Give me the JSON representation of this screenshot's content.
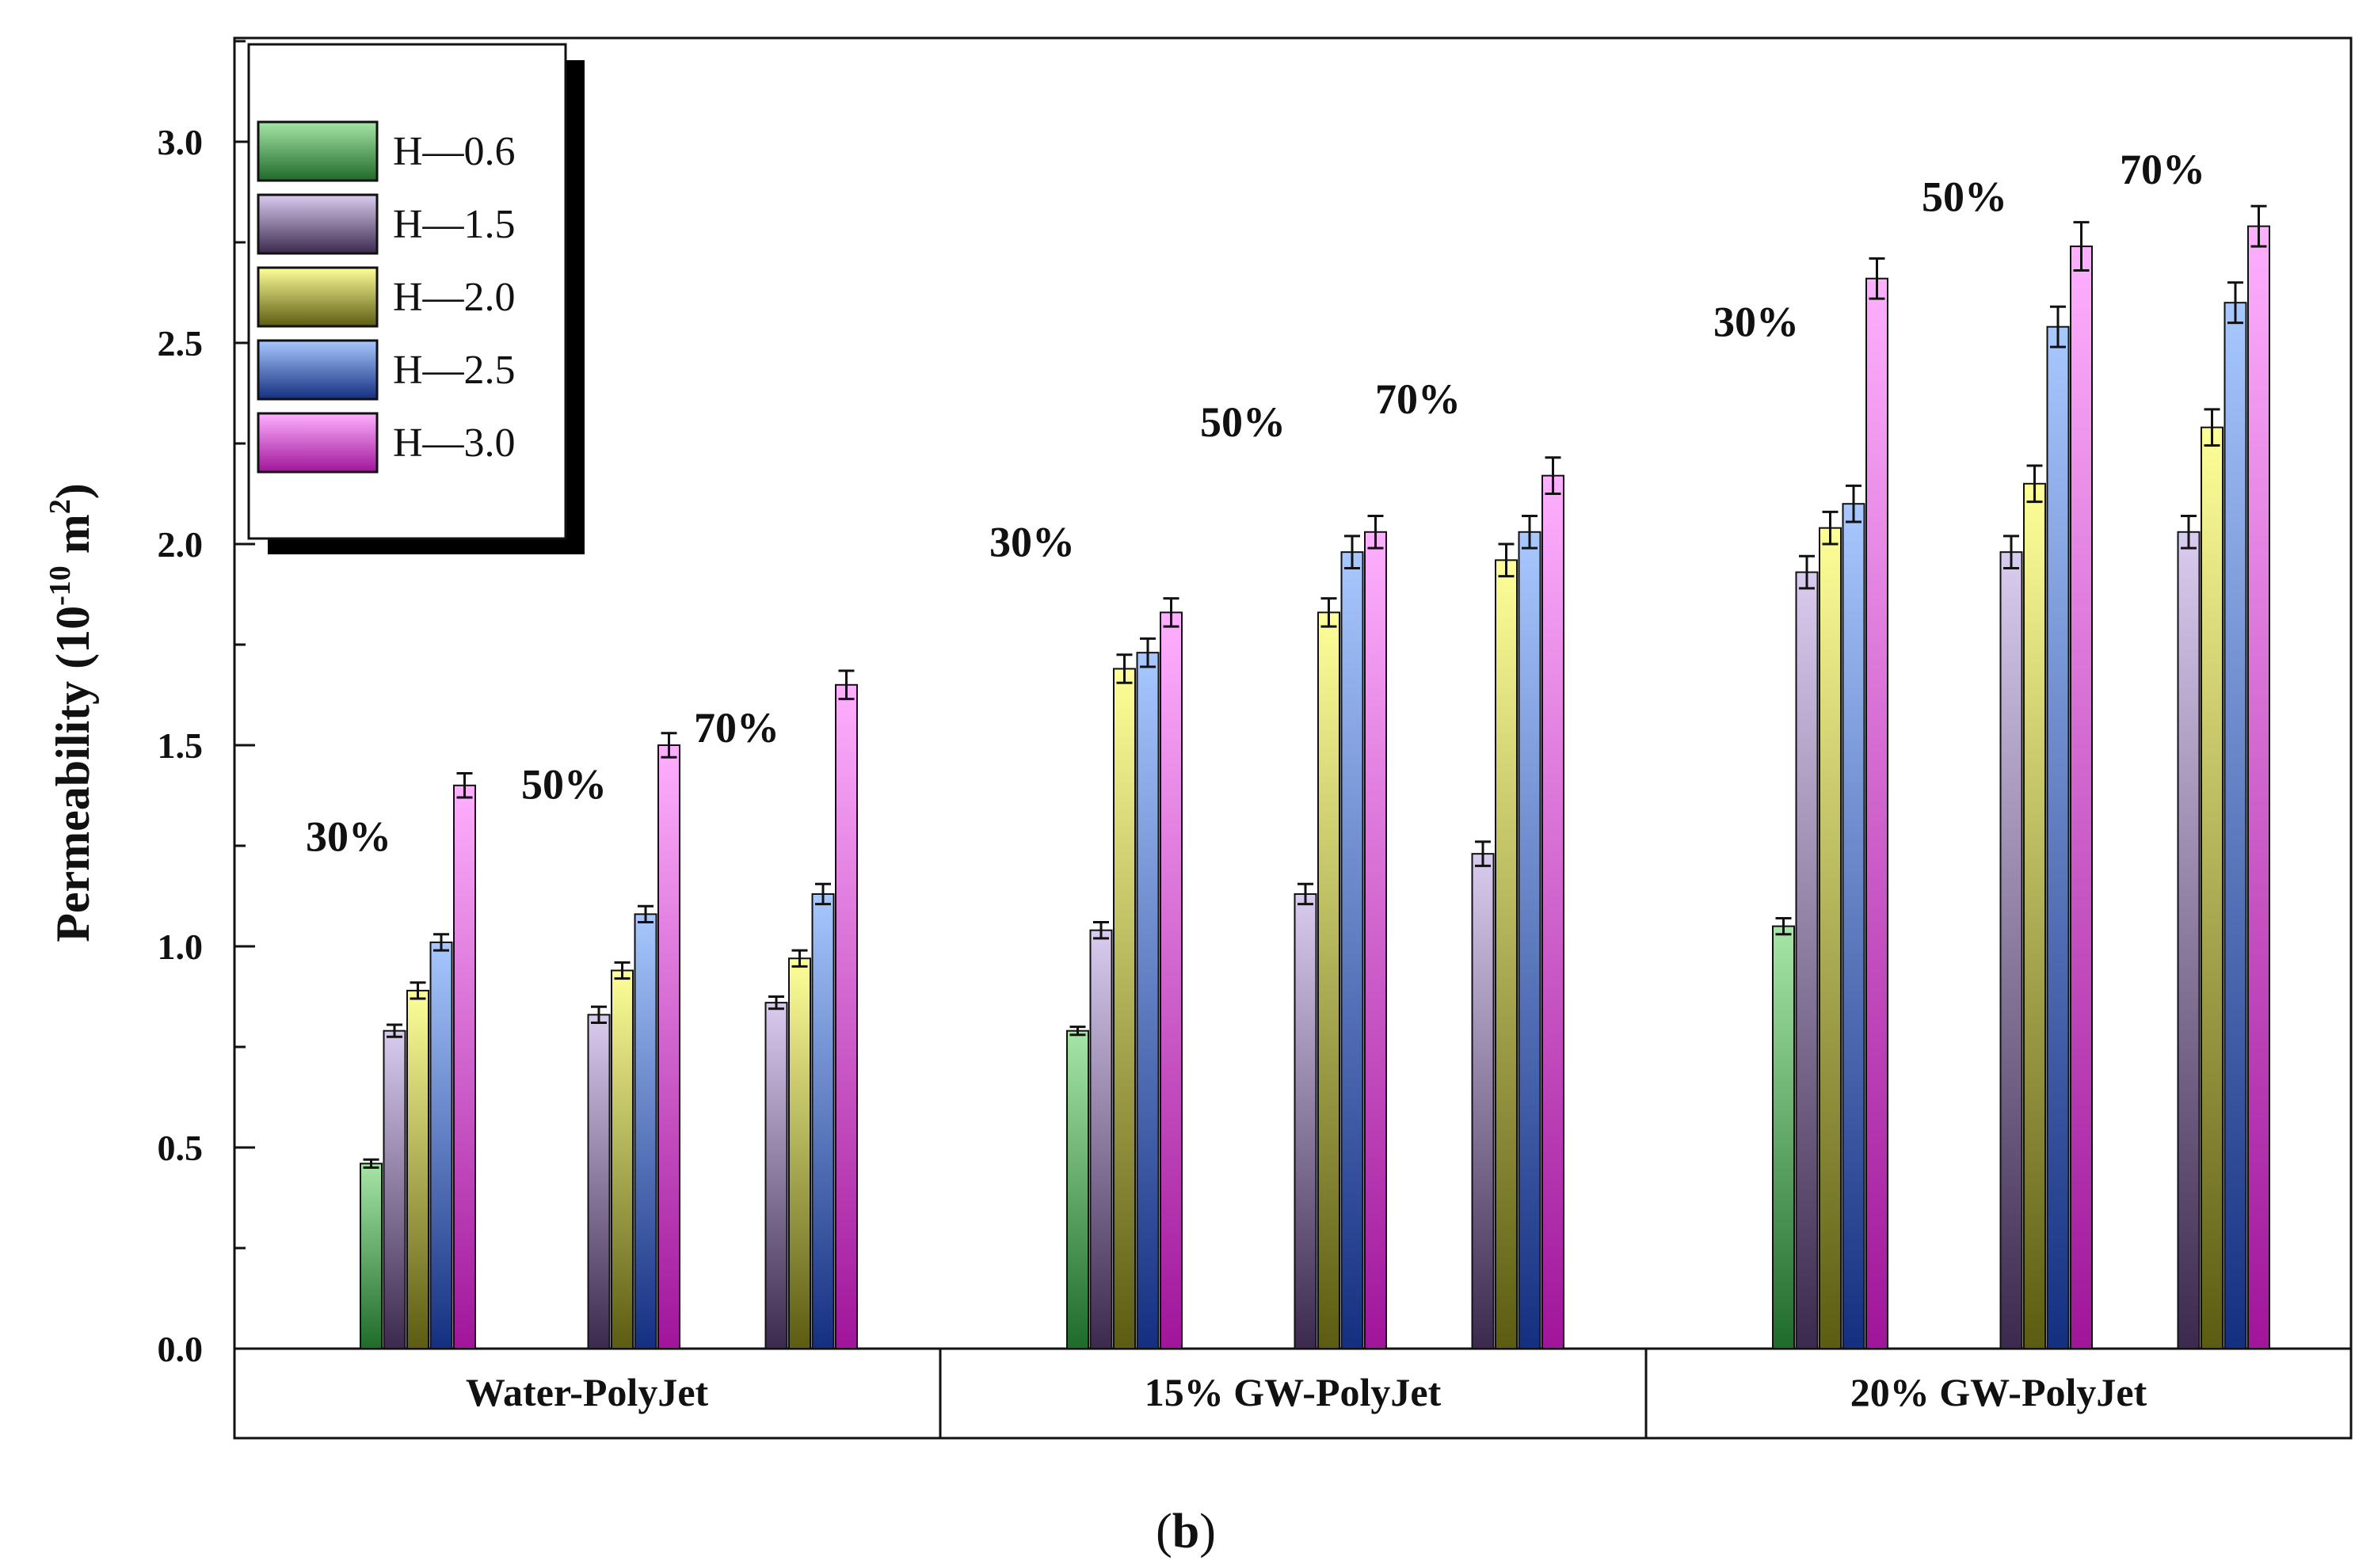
{
  "chart_data": {
    "type": "bar",
    "ylabel": "Permeability (10",
    "ylabel_exponent": "-10",
    "ylabel_unit": " m",
    "ylabel_unit_exponent": "2",
    "ylabel_close": ")",
    "ylim": [
      0,
      3.25
    ],
    "yticks": [
      "0.0",
      "0.5",
      "1.0",
      "1.5",
      "2.0",
      "2.5",
      "3.0"
    ],
    "ytick_values": [
      0,
      0.5,
      1.0,
      1.5,
      2.0,
      2.5,
      3.0
    ],
    "caption_open": "(",
    "caption_letter": "b",
    "caption_close": ")",
    "legend_position": "top-left",
    "series": [
      {
        "name": "H—0.6",
        "color_top": "#a6e6a6",
        "color_bottom": "#1f6b2a"
      },
      {
        "name": "H—1.5",
        "color_top": "#d9ccef",
        "color_bottom": "#3c2a4e"
      },
      {
        "name": "H—2.0",
        "color_top": "#ffff99",
        "color_bottom": "#5c5c12"
      },
      {
        "name": "H—2.5",
        "color_top": "#a8c8ff",
        "color_bottom": "#142f80"
      },
      {
        "name": "H—3.0",
        "color_top": "#ffb0ff",
        "color_bottom": "#a0159a"
      }
    ],
    "groups": [
      {
        "label": "Water-PolyJet",
        "subgroups": [
          {
            "label": "30%",
            "values": [
              0.46,
              0.79,
              0.89,
              1.01,
              1.4
            ],
            "errors": [
              0.01,
              0.015,
              0.02,
              0.02,
              0.03
            ]
          },
          {
            "label": "50%",
            "values": [
              null,
              0.83,
              0.94,
              1.08,
              1.5
            ],
            "errors": [
              null,
              0.02,
              0.02,
              0.02,
              0.03
            ]
          },
          {
            "label": "70%",
            "values": [
              null,
              0.86,
              0.97,
              1.13,
              1.65
            ],
            "errors": [
              null,
              0.015,
              0.02,
              0.025,
              0.035
            ]
          }
        ]
      },
      {
        "label": "15% GW-PolyJet",
        "subgroups": [
          {
            "label": "30%",
            "values": [
              0.79,
              1.04,
              1.69,
              1.73,
              1.83
            ],
            "errors": [
              0.01,
              0.02,
              0.035,
              0.035,
              0.035
            ]
          },
          {
            "label": "50%",
            "values": [
              null,
              1.13,
              1.83,
              1.98,
              2.03
            ],
            "errors": [
              null,
              0.025,
              0.035,
              0.04,
              0.04
            ]
          },
          {
            "label": "70%",
            "values": [
              null,
              1.23,
              1.96,
              2.03,
              2.17
            ],
            "errors": [
              null,
              0.03,
              0.04,
              0.04,
              0.045
            ]
          }
        ]
      },
      {
        "label": "20% GW-PolyJet",
        "subgroups": [
          {
            "label": "30%",
            "values": [
              1.05,
              1.93,
              2.04,
              2.1,
              2.66
            ],
            "errors": [
              0.02,
              0.04,
              0.04,
              0.045,
              0.05
            ]
          },
          {
            "label": "50%",
            "values": [
              null,
              1.98,
              2.15,
              2.54,
              2.74
            ],
            "errors": [
              null,
              0.04,
              0.045,
              0.05,
              0.06
            ]
          },
          {
            "label": "70%",
            "values": [
              null,
              2.03,
              2.29,
              2.6,
              2.79
            ],
            "errors": [
              null,
              0.04,
              0.045,
              0.05,
              0.05
            ]
          }
        ]
      }
    ]
  }
}
